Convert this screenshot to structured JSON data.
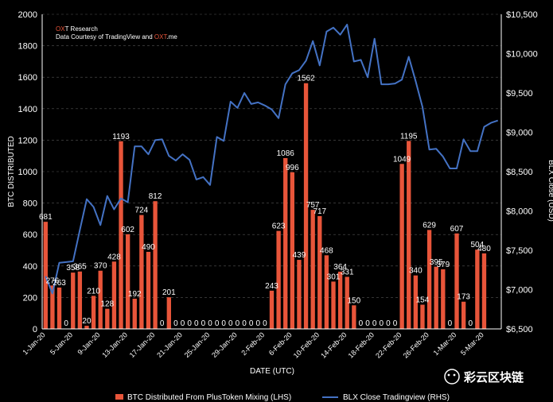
{
  "credit": {
    "brand_prefix": "O",
    "brand_accent": "X",
    "brand_suffix": "T Research",
    "line2_prefix": "Data Courtesy of TradingView and ",
    "line2_accent": "OXT",
    "line2_suffix": ".me"
  },
  "watermark": {
    "text": "彩云区块链"
  },
  "colors": {
    "background": "#000000",
    "bars": "#e8553a",
    "line": "#4472c4",
    "text": "#ffffff",
    "grid": "#555555",
    "accent": "#e8553a"
  },
  "chart_data": {
    "type": "bar",
    "title": "",
    "xlabel": "DATE (UTC)",
    "ylabel": "BTC DISTRIBUTED",
    "y2label": "BLX Close (USD)",
    "ylim": [
      0,
      2000
    ],
    "y2lim": [
      6500,
      10500
    ],
    "yticks": [
      "0",
      "200",
      "400",
      "600",
      "800",
      "1000",
      "1200",
      "1400",
      "1600",
      "1800",
      "2000"
    ],
    "y2ticks": [
      "$6,500",
      "$7,000",
      "$7,500",
      "$8,000",
      "$8,500",
      "$9,000",
      "$9,500",
      "$10,000",
      "$10,500"
    ],
    "x_tick_labels": [
      "1-Jan-20",
      "5-Jan-20",
      "9-Jan-20",
      "13-Jan-20",
      "17-Jan-20",
      "21-Jan-20",
      "25-Jan-20",
      "29-Jan-20",
      "2-Feb-20",
      "6-Feb-20",
      "10-Feb-20",
      "14-Feb-20",
      "18-Feb-20",
      "22-Feb-20",
      "26-Feb-20",
      "1-Mar-20",
      "5-Mar-20"
    ],
    "legend_position": "bottom",
    "grid": true,
    "categories": [
      "1-Jan-20",
      "2-Jan-20",
      "3-Jan-20",
      "4-Jan-20",
      "5-Jan-20",
      "6-Jan-20",
      "7-Jan-20",
      "8-Jan-20",
      "9-Jan-20",
      "10-Jan-20",
      "11-Jan-20",
      "12-Jan-20",
      "13-Jan-20",
      "14-Jan-20",
      "15-Jan-20",
      "16-Jan-20",
      "17-Jan-20",
      "18-Jan-20",
      "19-Jan-20",
      "20-Jan-20",
      "21-Jan-20",
      "22-Jan-20",
      "23-Jan-20",
      "24-Jan-20",
      "25-Jan-20",
      "26-Jan-20",
      "27-Jan-20",
      "28-Jan-20",
      "29-Jan-20",
      "30-Jan-20",
      "31-Jan-20",
      "1-Feb-20",
      "2-Feb-20",
      "3-Feb-20",
      "4-Feb-20",
      "5-Feb-20",
      "6-Feb-20",
      "7-Feb-20",
      "8-Feb-20",
      "9-Feb-20",
      "10-Feb-20",
      "11-Feb-20",
      "12-Feb-20",
      "13-Feb-20",
      "14-Feb-20",
      "15-Feb-20",
      "16-Feb-20",
      "17-Feb-20",
      "18-Feb-20",
      "19-Feb-20",
      "20-Feb-20",
      "21-Feb-20",
      "22-Feb-20",
      "23-Feb-20",
      "24-Feb-20",
      "25-Feb-20",
      "26-Feb-20",
      "27-Feb-20",
      "28-Feb-20",
      "29-Feb-20",
      "1-Mar-20",
      "2-Mar-20",
      "3-Mar-20",
      "4-Mar-20",
      "5-Mar-20",
      "6-Mar-20",
      "7-Mar-20"
    ],
    "series": [
      {
        "name": "BTC Distributed From PlusToken Mixing (LHS)",
        "type": "bar",
        "axis": "left",
        "values": [
          681,
          276,
          263,
          0,
          358,
          365,
          20,
          210,
          370,
          128,
          428,
          1193,
          602,
          192,
          724,
          490,
          812,
          0,
          201,
          0,
          0,
          0,
          0,
          0,
          0,
          0,
          0,
          0,
          0,
          0,
          0,
          0,
          0,
          243,
          623,
          1086,
          996,
          439,
          1562,
          757,
          717,
          468,
          301,
          364,
          331,
          150,
          0,
          0,
          0,
          0,
          0,
          0,
          1049,
          1195,
          340,
          154,
          629,
          395,
          379,
          0,
          607,
          173,
          0,
          504,
          480,
          0,
          0
        ],
        "labels": [
          "681",
          "276",
          "263",
          "0",
          "358",
          "365",
          "20",
          "210",
          "370",
          "128",
          "428",
          "1193",
          "602",
          "192",
          "724",
          "490",
          "812",
          "0",
          "201",
          "0",
          "0",
          "0",
          "0",
          "0",
          "0",
          "0",
          "0",
          "0",
          "0",
          "0",
          "0",
          "0",
          "0",
          "243",
          "623",
          "1086",
          "996",
          "439",
          "1562",
          "757",
          "717",
          "468",
          "301",
          "364",
          "331",
          "150",
          "0",
          "0",
          "0",
          "0",
          "0",
          "0",
          "1049",
          "1195",
          "340",
          "154",
          "629",
          "395",
          "379",
          "0",
          "607",
          "173",
          "0",
          "504",
          "480",
          "",
          ""
        ]
      },
      {
        "name": "BLX Close Tradingview (RHS)",
        "type": "line",
        "axis": "right",
        "values": [
          7170,
          6950,
          7340,
          7350,
          7360,
          7760,
          8150,
          8050,
          7820,
          8190,
          8020,
          8160,
          8110,
          8820,
          8820,
          8720,
          8900,
          8910,
          8700,
          8640,
          8720,
          8650,
          8400,
          8430,
          8330,
          8940,
          8890,
          9390,
          9310,
          9500,
          9360,
          9380,
          9340,
          9290,
          9180,
          9610,
          9750,
          9790,
          9910,
          10160,
          9850,
          10280,
          10330,
          10240,
          10370,
          9900,
          9920,
          9700,
          10190,
          9610,
          9610,
          9620,
          9670,
          9960,
          9650,
          9320,
          8780,
          8790,
          8690,
          8540,
          8540,
          8910,
          8760,
          8760,
          9070,
          9120,
          9150
        ]
      }
    ]
  }
}
